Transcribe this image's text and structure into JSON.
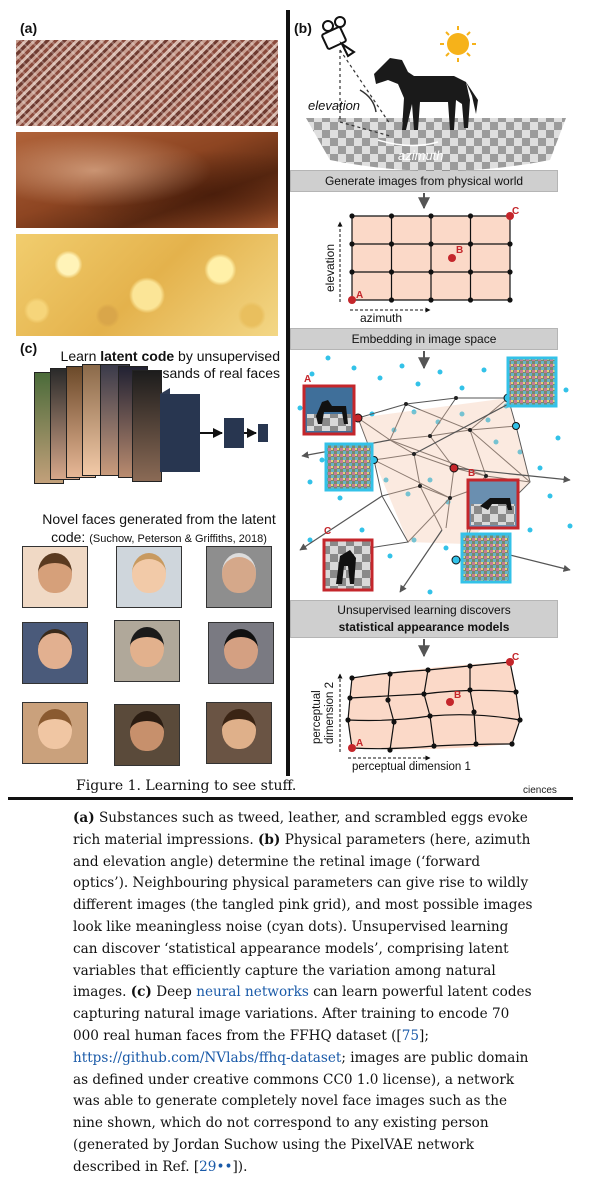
{
  "figure": {
    "panel_a": {
      "label": "(a)",
      "textures": [
        "tweed",
        "leather",
        "scrambled eggs"
      ]
    },
    "panel_b": {
      "label": "(b)",
      "icons": [
        "camera-icon",
        "sun-icon",
        "horse-icon"
      ],
      "scene_labels": {
        "elevation": "elevation",
        "azimuth": "azimuth"
      },
      "step1": "Generate images from physical world",
      "grid1": {
        "x_label": "azimuth",
        "y_label": "elevation",
        "point_labels": [
          "A",
          "B",
          "C"
        ]
      },
      "step2": "Embedding in image space",
      "embedding_labels": [
        "A",
        "B",
        "C"
      ],
      "step3_line1": "Unsupervised learning discovers",
      "step3_line2": "statistical appearance models",
      "grid2": {
        "x_label": "perceptual dimension 1",
        "y_label_1": "perceptual",
        "y_label_2": "dimension 2",
        "point_labels": [
          "A",
          "B",
          "C"
        ]
      },
      "credit": "ciences"
    },
    "panel_c": {
      "label": "(c)",
      "heading_pre": "Learn ",
      "heading_bold": "latent code",
      "heading_post": " by unsupervised training on thousands of real faces",
      "novel_text": "Novel faces generated from the latent code:",
      "novel_cite": "(Suchow, Peterson & Griffiths, 2018)"
    },
    "title": "Figure 1. Learning to see stuff."
  },
  "caption": {
    "a_label": "(a)",
    "a_text": " Substances such as tweed, leather, and scrambled eggs evoke rich material impressions. ",
    "b_label": "(b)",
    "b_text": " Physical parameters (here, azimuth and elevation angle) determine the retinal image (‘forward optics’). Neighbouring physical parameters can give rise to wildly different images (the tangled pink grid), and most possible images look like meaningless noise (cyan dots). Unsupervised learning can discover ‘statistical appearance models’, comprising latent variables that efficiently capture the variation among natural images. ",
    "c_label": "(c)",
    "c_text_1": " Deep ",
    "c_link_1": "neural networks",
    "c_text_2": " can learn powerful latent codes capturing natural image variations. After training to encode 70 000 real human faces from the FFHQ dataset ([",
    "c_ref_1": "75",
    "c_text_3": "]; ",
    "c_link_2": "https://github.com/NVlabs/ffhq-dataset",
    "c_text_4": "; images are public domain as defined under creative commons CC0 1.0 license), a network was able to generate completely novel face images such as the nine shown, which do not correspond to any existing person (generated by Jordan Suchow using the PixelVAE network described in Ref. [",
    "c_ref_2": "29••",
    "c_text_5": "])."
  },
  "colors": {
    "grid_fill": "#fbd9c8",
    "point_red": "#c4262b",
    "noise_cyan": "#33c2e8",
    "bar_gray": "#cfcfcf",
    "link_blue": "#1a5aa8"
  }
}
